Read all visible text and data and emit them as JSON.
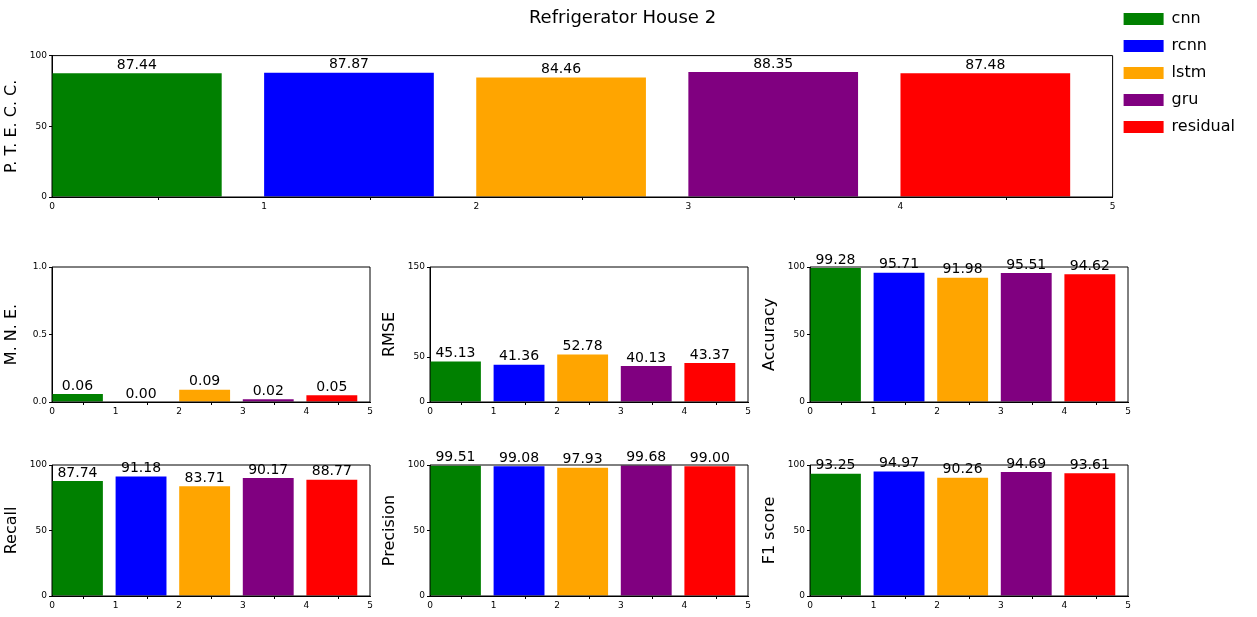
{
  "chart_data": [
    {
      "type": "bar",
      "title": "Refrigerator House 2",
      "ylabel": "P. T. E. C. C.",
      "xlim": [
        0,
        5
      ],
      "xticks": [
        0,
        1,
        2,
        3,
        4,
        5
      ],
      "ylim": [
        0,
        100
      ],
      "yticks": [
        0,
        50,
        100
      ],
      "grid": false,
      "legend": "right",
      "series": [
        {
          "name": "cnn",
          "color": "#008000",
          "x": [
            0.4
          ],
          "values": [
            87.44
          ],
          "value_labels": [
            "87.44"
          ]
        },
        {
          "name": "rcnn",
          "color": "#0000ff",
          "x": [
            1.4
          ],
          "values": [
            87.87
          ],
          "value_labels": [
            "87.87"
          ]
        },
        {
          "name": "lstm",
          "color": "#ffa500",
          "x": [
            2.4
          ],
          "values": [
            84.46
          ],
          "value_labels": [
            "84.46"
          ]
        },
        {
          "name": "gru",
          "color": "#800080",
          "x": [
            3.4
          ],
          "values": [
            88.35
          ],
          "value_labels": [
            "88.35"
          ]
        },
        {
          "name": "residual",
          "color": "#ff0000",
          "x": [
            4.4
          ],
          "values": [
            87.48
          ],
          "value_labels": [
            "87.48"
          ]
        }
      ]
    },
    {
      "type": "bar",
      "ylabel": "M. N. E.",
      "xlim": [
        0,
        5
      ],
      "xticks": [
        0,
        1,
        2,
        3,
        4,
        5
      ],
      "ylim": [
        0,
        1
      ],
      "yticks": [
        {
          "value": 0,
          "label": "0.0"
        },
        0.5,
        {
          "value": 1,
          "label": "1.0"
        }
      ],
      "grid": false,
      "x": [
        0.4,
        1.4,
        2.4,
        3.4,
        4.4
      ],
      "values": [
        0.06,
        0,
        0.09,
        0.02,
        0.05
      ],
      "value_labels": [
        "0.06",
        "0.00",
        "0.09",
        "0.02",
        "0.05"
      ],
      "colors": [
        "#008000",
        "#0000ff",
        "#ffa500",
        "#800080",
        "#ff0000"
      ]
    },
    {
      "type": "bar",
      "ylabel": "RMSE",
      "xlim": [
        0,
        5
      ],
      "xticks": [
        0,
        1,
        2,
        3,
        4,
        5
      ],
      "ylim": [
        0,
        150
      ],
      "yticks": [
        0,
        50,
        150
      ],
      "grid": false,
      "x": [
        0.4,
        1.4,
        2.4,
        3.4,
        4.4
      ],
      "values": [
        45.13,
        41.36,
        52.78,
        40.13,
        43.37
      ],
      "value_labels": [
        "45.13",
        "41.36",
        "52.78",
        "40.13",
        "43.37"
      ],
      "colors": [
        "#008000",
        "#0000ff",
        "#ffa500",
        "#800080",
        "#ff0000"
      ]
    },
    {
      "type": "bar",
      "ylabel": "Accuracy",
      "xlim": [
        0,
        5
      ],
      "xticks": [
        0,
        1,
        2,
        3,
        4,
        5
      ],
      "ylim": [
        0,
        100
      ],
      "yticks": [
        0,
        50,
        100
      ],
      "grid": false,
      "x": [
        0.4,
        1.4,
        2.4,
        3.4,
        4.4
      ],
      "values": [
        99.28,
        95.71,
        91.98,
        95.51,
        94.62
      ],
      "value_labels": [
        "99.28",
        "95.71",
        "91.98",
        "95.51",
        "94.62"
      ],
      "colors": [
        "#008000",
        "#0000ff",
        "#ffa500",
        "#800080",
        "#ff0000"
      ]
    },
    {
      "type": "bar",
      "ylabel": "Recall",
      "xlim": [
        0,
        5
      ],
      "xticks": [
        0,
        1,
        2,
        3,
        4,
        5
      ],
      "ylim": [
        0,
        100
      ],
      "yticks": [
        0,
        50,
        100
      ],
      "grid": false,
      "x": [
        0.4,
        1.4,
        2.4,
        3.4,
        4.4
      ],
      "values": [
        87.74,
        91.18,
        83.71,
        90.17,
        88.77
      ],
      "value_labels": [
        "87.74",
        "91.18",
        "83.71",
        "90.17",
        "88.77"
      ],
      "colors": [
        "#008000",
        "#0000ff",
        "#ffa500",
        "#800080",
        "#ff0000"
      ]
    },
    {
      "type": "bar",
      "ylabel": "Precision",
      "xlim": [
        0,
        5
      ],
      "xticks": [
        0,
        1,
        2,
        3,
        4,
        5
      ],
      "ylim": [
        0,
        100
      ],
      "yticks": [
        0,
        50,
        100
      ],
      "grid": false,
      "x": [
        0.4,
        1.4,
        2.4,
        3.4,
        4.4
      ],
      "values": [
        99.51,
        99.08,
        97.93,
        99.68,
        99.0
      ],
      "value_labels": [
        "99.51",
        "99.08",
        "97.93",
        "99.68",
        "99.00"
      ],
      "colors": [
        "#008000",
        "#0000ff",
        "#ffa500",
        "#800080",
        "#ff0000"
      ]
    },
    {
      "type": "bar",
      "ylabel": "F1 score",
      "xlim": [
        0,
        5
      ],
      "xticks": [
        0,
        1,
        2,
        3,
        4,
        5
      ],
      "ylim": [
        0,
        100
      ],
      "yticks": [
        0,
        50,
        100
      ],
      "grid": false,
      "x": [
        0.4,
        1.4,
        2.4,
        3.4,
        4.4
      ],
      "values": [
        93.25,
        94.97,
        90.26,
        94.69,
        93.61
      ],
      "value_labels": [
        "93.25",
        "94.97",
        "90.26",
        "94.69",
        "93.61"
      ],
      "colors": [
        "#008000",
        "#0000ff",
        "#ffa500",
        "#800080",
        "#ff0000"
      ]
    }
  ]
}
